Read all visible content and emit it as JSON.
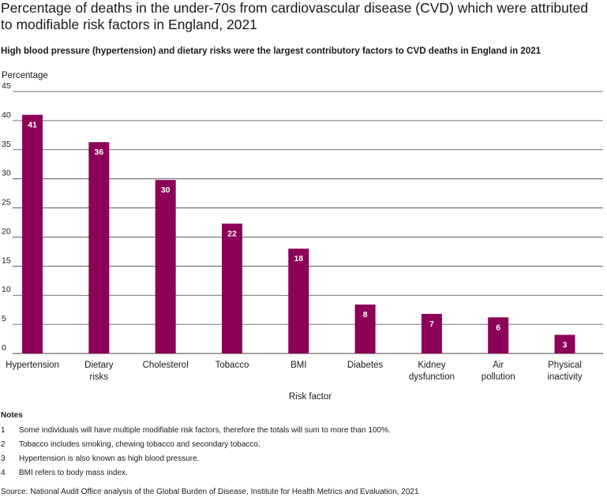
{
  "title": "Percentage of deaths in the under-70s from cardiovascular disease (CVD) which were attributed to modifiable risk factors in England, 2021",
  "subtitle": "High blood pressure (hypertension) and dietary risks were the largest contributory factors to CVD deaths in England in 2021",
  "colors": {
    "bar": "#8c0058",
    "bar_label": "#ffffff",
    "grid": "#444444"
  },
  "chart_data": {
    "type": "bar",
    "ylabel": "Percentage",
    "xlabel": "Risk factor",
    "ylim": [
      0,
      45
    ],
    "yticks": [
      0,
      5,
      10,
      15,
      20,
      25,
      30,
      35,
      40,
      45
    ],
    "grid": true,
    "categories": [
      [
        "Hypertension"
      ],
      [
        "Dietary",
        "risks"
      ],
      [
        "Cholesterol"
      ],
      [
        "Tobacco"
      ],
      [
        "BMI"
      ],
      [
        "Diabetes"
      ],
      [
        "Kidney",
        "dysfunction"
      ],
      [
        "Air",
        "pollution"
      ],
      [
        "Physical",
        "inactivity"
      ]
    ],
    "values": [
      41,
      36.3,
      29.8,
      22.3,
      18,
      8.4,
      6.8,
      6.2,
      3.2
    ],
    "data_labels": [
      "41",
      "36",
      "30",
      "22",
      "18",
      "8",
      "7",
      "6",
      "3"
    ]
  },
  "notes": {
    "heading": "Notes",
    "items": [
      {
        "num": "1",
        "text": "Some individuals will have multiple modifiable risk factors, therefore the totals will sum to more than 100%."
      },
      {
        "num": "2",
        "text": "Tobacco includes smoking, chewing tobacco and secondary tobacco."
      },
      {
        "num": "3",
        "text": "Hypertension is also known as high blood pressure."
      },
      {
        "num": "4",
        "text": "BMI refers to body mass index."
      }
    ]
  },
  "source": "Source: National Audit Office analysis of the Global Burden of Disease, Institute for Health Metrics and Evaluation, 2021"
}
